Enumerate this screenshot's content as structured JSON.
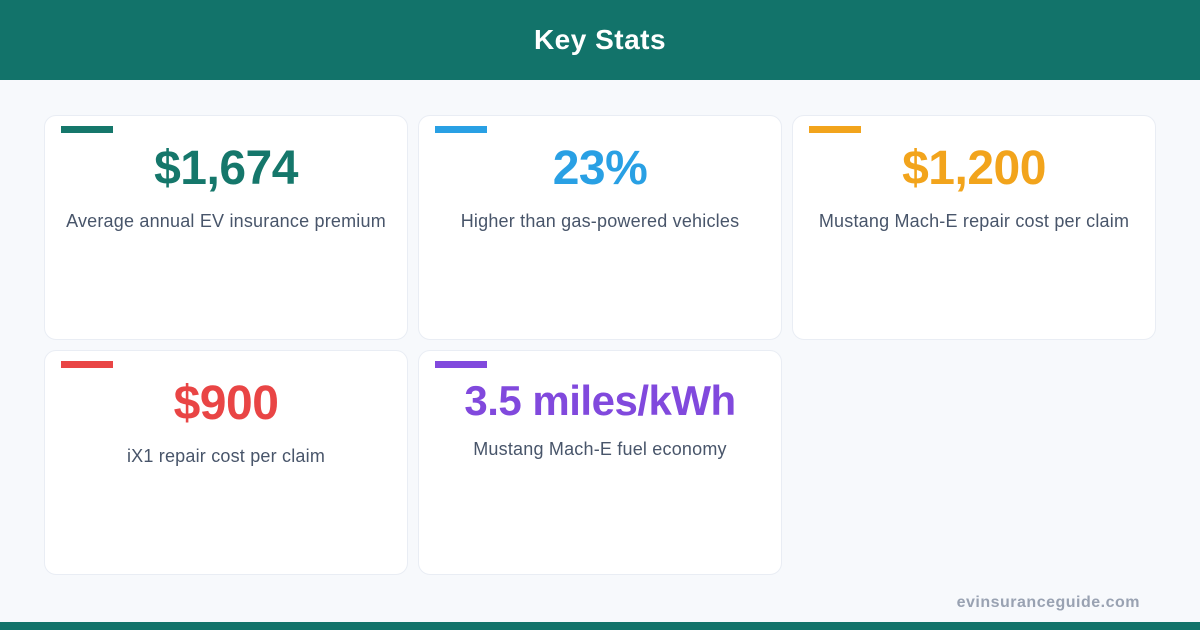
{
  "header": {
    "title": "Key Stats",
    "background": "#12736a",
    "text_color": "#ffffff"
  },
  "cards": [
    {
      "value": "$1,674",
      "label": "Average annual EV insurance premium",
      "accent": "#15776b"
    },
    {
      "value": "23%",
      "label": "Higher than gas-powered vehicles",
      "accent": "#29a0e4"
    },
    {
      "value": "$1,200",
      "label": "Mustang Mach-E repair cost per claim",
      "accent": "#f2a41c"
    },
    {
      "value": "$900",
      "label": "iX1 repair cost per claim",
      "accent": "#e94545"
    },
    {
      "value": "3.5 miles/kWh",
      "label": "Mustang Mach-E fuel economy",
      "accent": "#8149dd"
    }
  ],
  "footer": {
    "website": "evinsuranceguide.com",
    "bar_color": "#12736a",
    "text_color": "#99a2b2"
  },
  "chart_data": {
    "type": "table",
    "title": "Key Stats",
    "columns": [
      "value",
      "description"
    ],
    "rows": [
      [
        "$1,674",
        "Average annual EV insurance premium"
      ],
      [
        "23%",
        "Higher than gas-powered vehicles"
      ],
      [
        "$1,200",
        "Mustang Mach-E repair cost per claim"
      ],
      [
        "$900",
        "iX1 repair cost per claim"
      ],
      [
        "3.5 miles/kWh",
        "Mustang Mach-E fuel economy"
      ]
    ],
    "accent_colors": [
      "#15776b",
      "#29a0e4",
      "#f2a41c",
      "#e94545",
      "#8149dd"
    ],
    "source": "evinsuranceguide.com"
  }
}
